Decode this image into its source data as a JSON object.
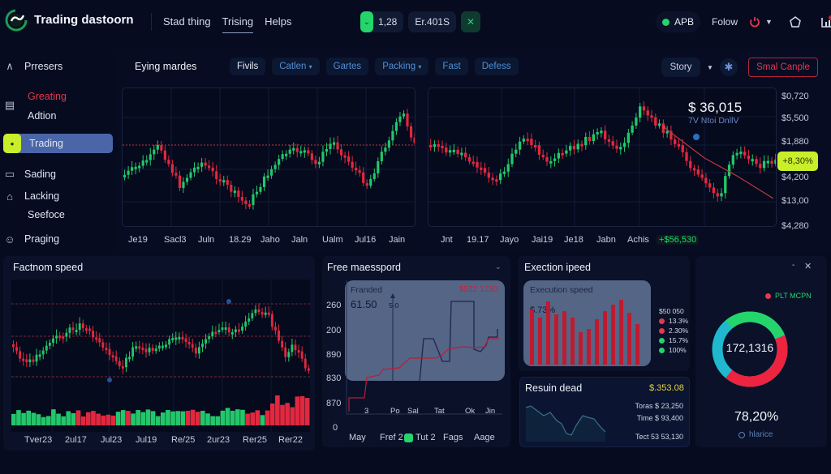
{
  "header": {
    "app_title": "Trading dastoorn",
    "nav": [
      {
        "label": "Stad thing",
        "active": false
      },
      {
        "label": "Trising",
        "active": true
      },
      {
        "label": "Helps",
        "active": false
      }
    ],
    "ticker_value": "1,28",
    "ticker_code": "Er.401S",
    "status_label": "APB",
    "status_color": "#23d56b",
    "follow_label": "Folow",
    "icons": [
      "logo-icon",
      "chevron-down-icon",
      "close-icon",
      "power-icon",
      "home-pentagon-icon",
      "chart-notification-icon"
    ]
  },
  "sidebar": {
    "items": [
      {
        "label": "Prresers",
        "icon": "bell-tent-icon"
      },
      {
        "label": "Greating",
        "icon": "clipboard-icon",
        "color": "#e2394f"
      },
      {
        "label": "Adtion",
        "icon": ""
      },
      {
        "label": "Trading",
        "icon": "robot-icon",
        "active": true
      },
      {
        "label": "Sading",
        "icon": "card-icon"
      },
      {
        "label": "Lacking",
        "icon": "house-icon"
      },
      {
        "label": "Seefoce",
        "icon": ""
      },
      {
        "label": "Praging",
        "icon": "face-icon"
      }
    ]
  },
  "main": {
    "title": "Eying mardes",
    "tabs": [
      {
        "label": "Fivils",
        "active": true,
        "dropdown": false
      },
      {
        "label": "Catlen",
        "active": false,
        "dropdown": true
      },
      {
        "label": "Gartes",
        "active": false,
        "dropdown": false
      },
      {
        "label": "Packing",
        "active": false,
        "dropdown": true
      },
      {
        "label": "Fast",
        "active": false,
        "dropdown": false
      },
      {
        "label": "Defess",
        "active": false,
        "dropdown": false
      }
    ],
    "story_label": "Story",
    "sample_label": "Smal Canple",
    "price": "$ 36,015",
    "price_sub": "7V Ntoi DnllV",
    "pct_badge": "+8,30%",
    "change_value": "+$56,530",
    "y_axis": [
      "$0,720",
      "$5,500",
      "$1,880",
      "$4,200",
      "$13,00",
      "$4,280"
    ],
    "x_axis_left": [
      "Je19",
      "Sacl3",
      "Juln",
      "18.29",
      "Jaho",
      "Jaln",
      "Ualm",
      "Jul16",
      "Jain"
    ],
    "x_axis_right": [
      "Jnt",
      "19.17",
      "Jayo",
      "Jai19",
      "Je18",
      "Jabn",
      "Achis"
    ]
  },
  "factnom": {
    "title": "Factnom speed",
    "x_axis": [
      "Tver23",
      "2ul17",
      "Jul23",
      "Jul19",
      "Re/25",
      "2ur23",
      "Rer25",
      "Rer22"
    ]
  },
  "free": {
    "title": "Free maesspord",
    "card_label": "Franded",
    "card_value": "61.50",
    "card_marker": "5-0",
    "card_price": "$522 1230",
    "y_axis": [
      "260",
      "200",
      "890",
      "830",
      "870",
      "0"
    ],
    "inner_x": [
      "3",
      "Po",
      "Sal",
      "Tat",
      "Ok",
      "Jin"
    ],
    "x_axis": [
      "May",
      "Fref 2",
      "Tut 2",
      "Fags",
      "Aage"
    ]
  },
  "exec": {
    "title": "Exection ipeed",
    "card_title": "Execution speed",
    "card_value": "$.73%",
    "legend_title": "$50 050",
    "legend": [
      {
        "label": "13.3%",
        "color": "#e2394f"
      },
      {
        "label": "2.30%",
        "color": "#e2394f"
      },
      {
        "label": "15.7%",
        "color": "#23d56b"
      },
      {
        "label": "100%",
        "color": "#23d56b"
      }
    ],
    "bars": [
      68,
      58,
      78,
      62,
      66,
      58,
      40,
      44,
      56,
      66,
      74,
      80,
      64,
      50
    ]
  },
  "result": {
    "title": "Resuin dead",
    "value": "$.353.08",
    "rows": [
      "Toras $ 23,250",
      "Time $ 93,400",
      "Tect 53 53,130"
    ]
  },
  "donut": {
    "legend_label": "PLT MCPN",
    "center_value": "172,1316",
    "percent": "78,20%",
    "footer": "hlarice",
    "segments": [
      {
        "color": "#23d56b",
        "pct": 30
      },
      {
        "color": "#ee2340",
        "pct": 42
      },
      {
        "color": "#1fb8cf",
        "pct": 28
      }
    ]
  }
}
